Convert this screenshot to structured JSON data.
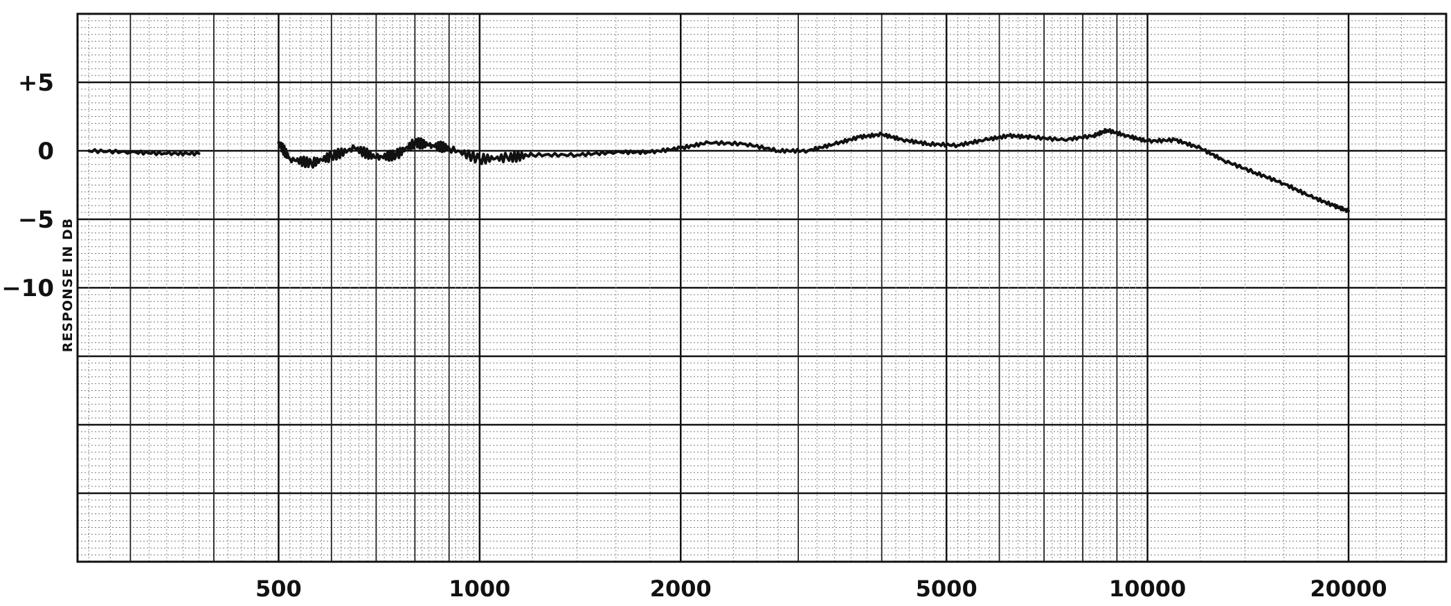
{
  "chart_data": {
    "type": "line",
    "title": "",
    "xlabel": "",
    "ylabel": "RESPONSE IN DB",
    "x_scale": "log",
    "xlim": [
      250,
      28000
    ],
    "ylim": [
      -30,
      10
    ],
    "y_ticks": [
      {
        "value": 5,
        "label": "+5"
      },
      {
        "value": 0,
        "label": "0"
      },
      {
        "value": -5,
        "label": "−5"
      },
      {
        "value": -10,
        "label": "−10"
      }
    ],
    "x_ticks": [
      {
        "value": 500,
        "label": "500"
      },
      {
        "value": 1000,
        "label": "1000"
      },
      {
        "value": 2000,
        "label": "2000"
      },
      {
        "value": 5000,
        "label": "5000"
      },
      {
        "value": 10000,
        "label": "10000"
      },
      {
        "value": 20000,
        "label": "20000"
      }
    ],
    "grid": true,
    "legend": "none",
    "series": [
      {
        "color": "#111111",
        "points": [
          [
            260,
            0.0
          ],
          [
            300,
            -0.1
          ],
          [
            340,
            -0.2
          ],
          [
            380,
            -0.2
          ]
        ]
      },
      {
        "color": "#111111",
        "points": [
          [
            500,
            0.6
          ],
          [
            520,
            -0.6
          ],
          [
            560,
            -0.9
          ],
          [
            600,
            -0.4
          ],
          [
            650,
            0.2
          ],
          [
            700,
            -0.5
          ],
          [
            750,
            -0.3
          ],
          [
            800,
            0.6
          ],
          [
            850,
            0.4
          ],
          [
            900,
            0.2
          ],
          [
            1000,
            -0.6
          ],
          [
            1100,
            -0.5
          ],
          [
            1200,
            -0.3
          ],
          [
            1400,
            -0.3
          ],
          [
            1600,
            -0.1
          ],
          [
            1800,
            -0.1
          ],
          [
            2000,
            0.2
          ],
          [
            2200,
            0.6
          ],
          [
            2500,
            0.5
          ],
          [
            2800,
            0.0
          ],
          [
            3100,
            0.0
          ],
          [
            3400,
            0.5
          ],
          [
            3700,
            1.0
          ],
          [
            4000,
            1.2
          ],
          [
            4300,
            0.8
          ],
          [
            4700,
            0.5
          ],
          [
            5200,
            0.4
          ],
          [
            5700,
            0.8
          ],
          [
            6200,
            1.1
          ],
          [
            6700,
            1.0
          ],
          [
            7500,
            0.8
          ],
          [
            8300,
            1.1
          ],
          [
            8700,
            1.5
          ],
          [
            9300,
            1.1
          ],
          [
            10000,
            0.7
          ],
          [
            11000,
            0.8
          ],
          [
            12000,
            0.2
          ],
          [
            13000,
            -0.7
          ],
          [
            14500,
            -1.6
          ],
          [
            16000,
            -2.4
          ],
          [
            17500,
            -3.3
          ],
          [
            19000,
            -4.0
          ],
          [
            20000,
            -4.4
          ]
        ]
      }
    ]
  }
}
